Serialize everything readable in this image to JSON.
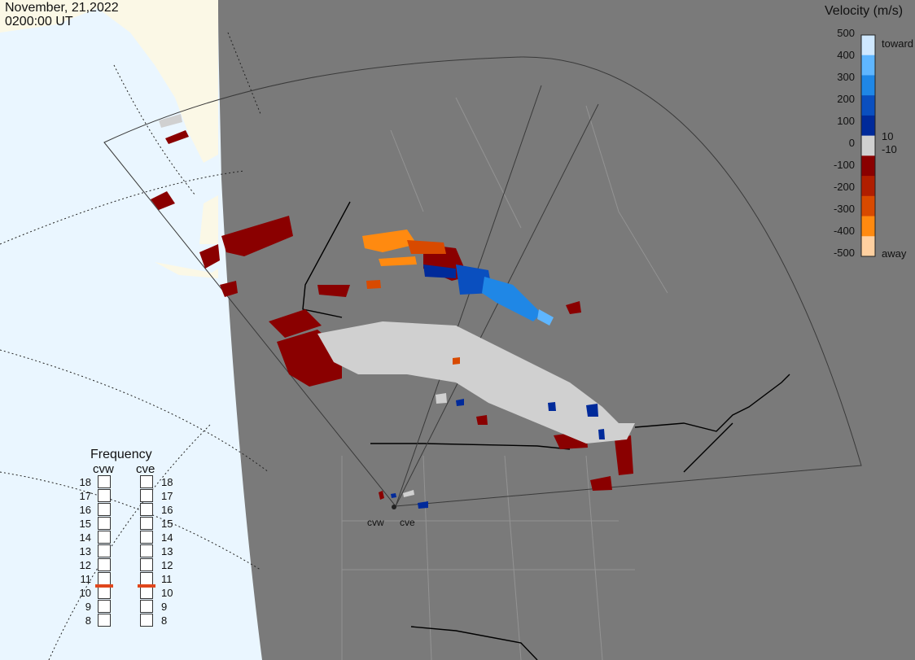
{
  "header": {
    "date": "November, 21,2022",
    "time": "0200:00 UT"
  },
  "legend": {
    "title": "Velocity (m/s)",
    "ticks": [
      "500",
      "400",
      "300",
      "200",
      "100",
      "10",
      "0",
      "-10",
      "-100",
      "-200",
      "-300",
      "-400",
      "-500"
    ],
    "toward_label": "toward",
    "away_label": "away",
    "colors": [
      "#cfe8ff",
      "#5fb6ff",
      "#1f87e6",
      "#0a4fbf",
      "#002a9a",
      "#d0d0d0",
      "#8a0000",
      "#b01e00",
      "#d84a00",
      "#ff8a10",
      "#ffd0a0"
    ]
  },
  "frequency": {
    "title": "Frequency",
    "radars": [
      {
        "name": "cvw",
        "value": 11
      },
      {
        "name": "cve",
        "value": 11
      }
    ],
    "levels": [
      "18",
      "17",
      "16",
      "15",
      "14",
      "13",
      "12",
      "11",
      "10",
      "9",
      "8"
    ]
  },
  "radars": [
    {
      "label": "cvw"
    },
    {
      "label": "cve"
    }
  ]
}
